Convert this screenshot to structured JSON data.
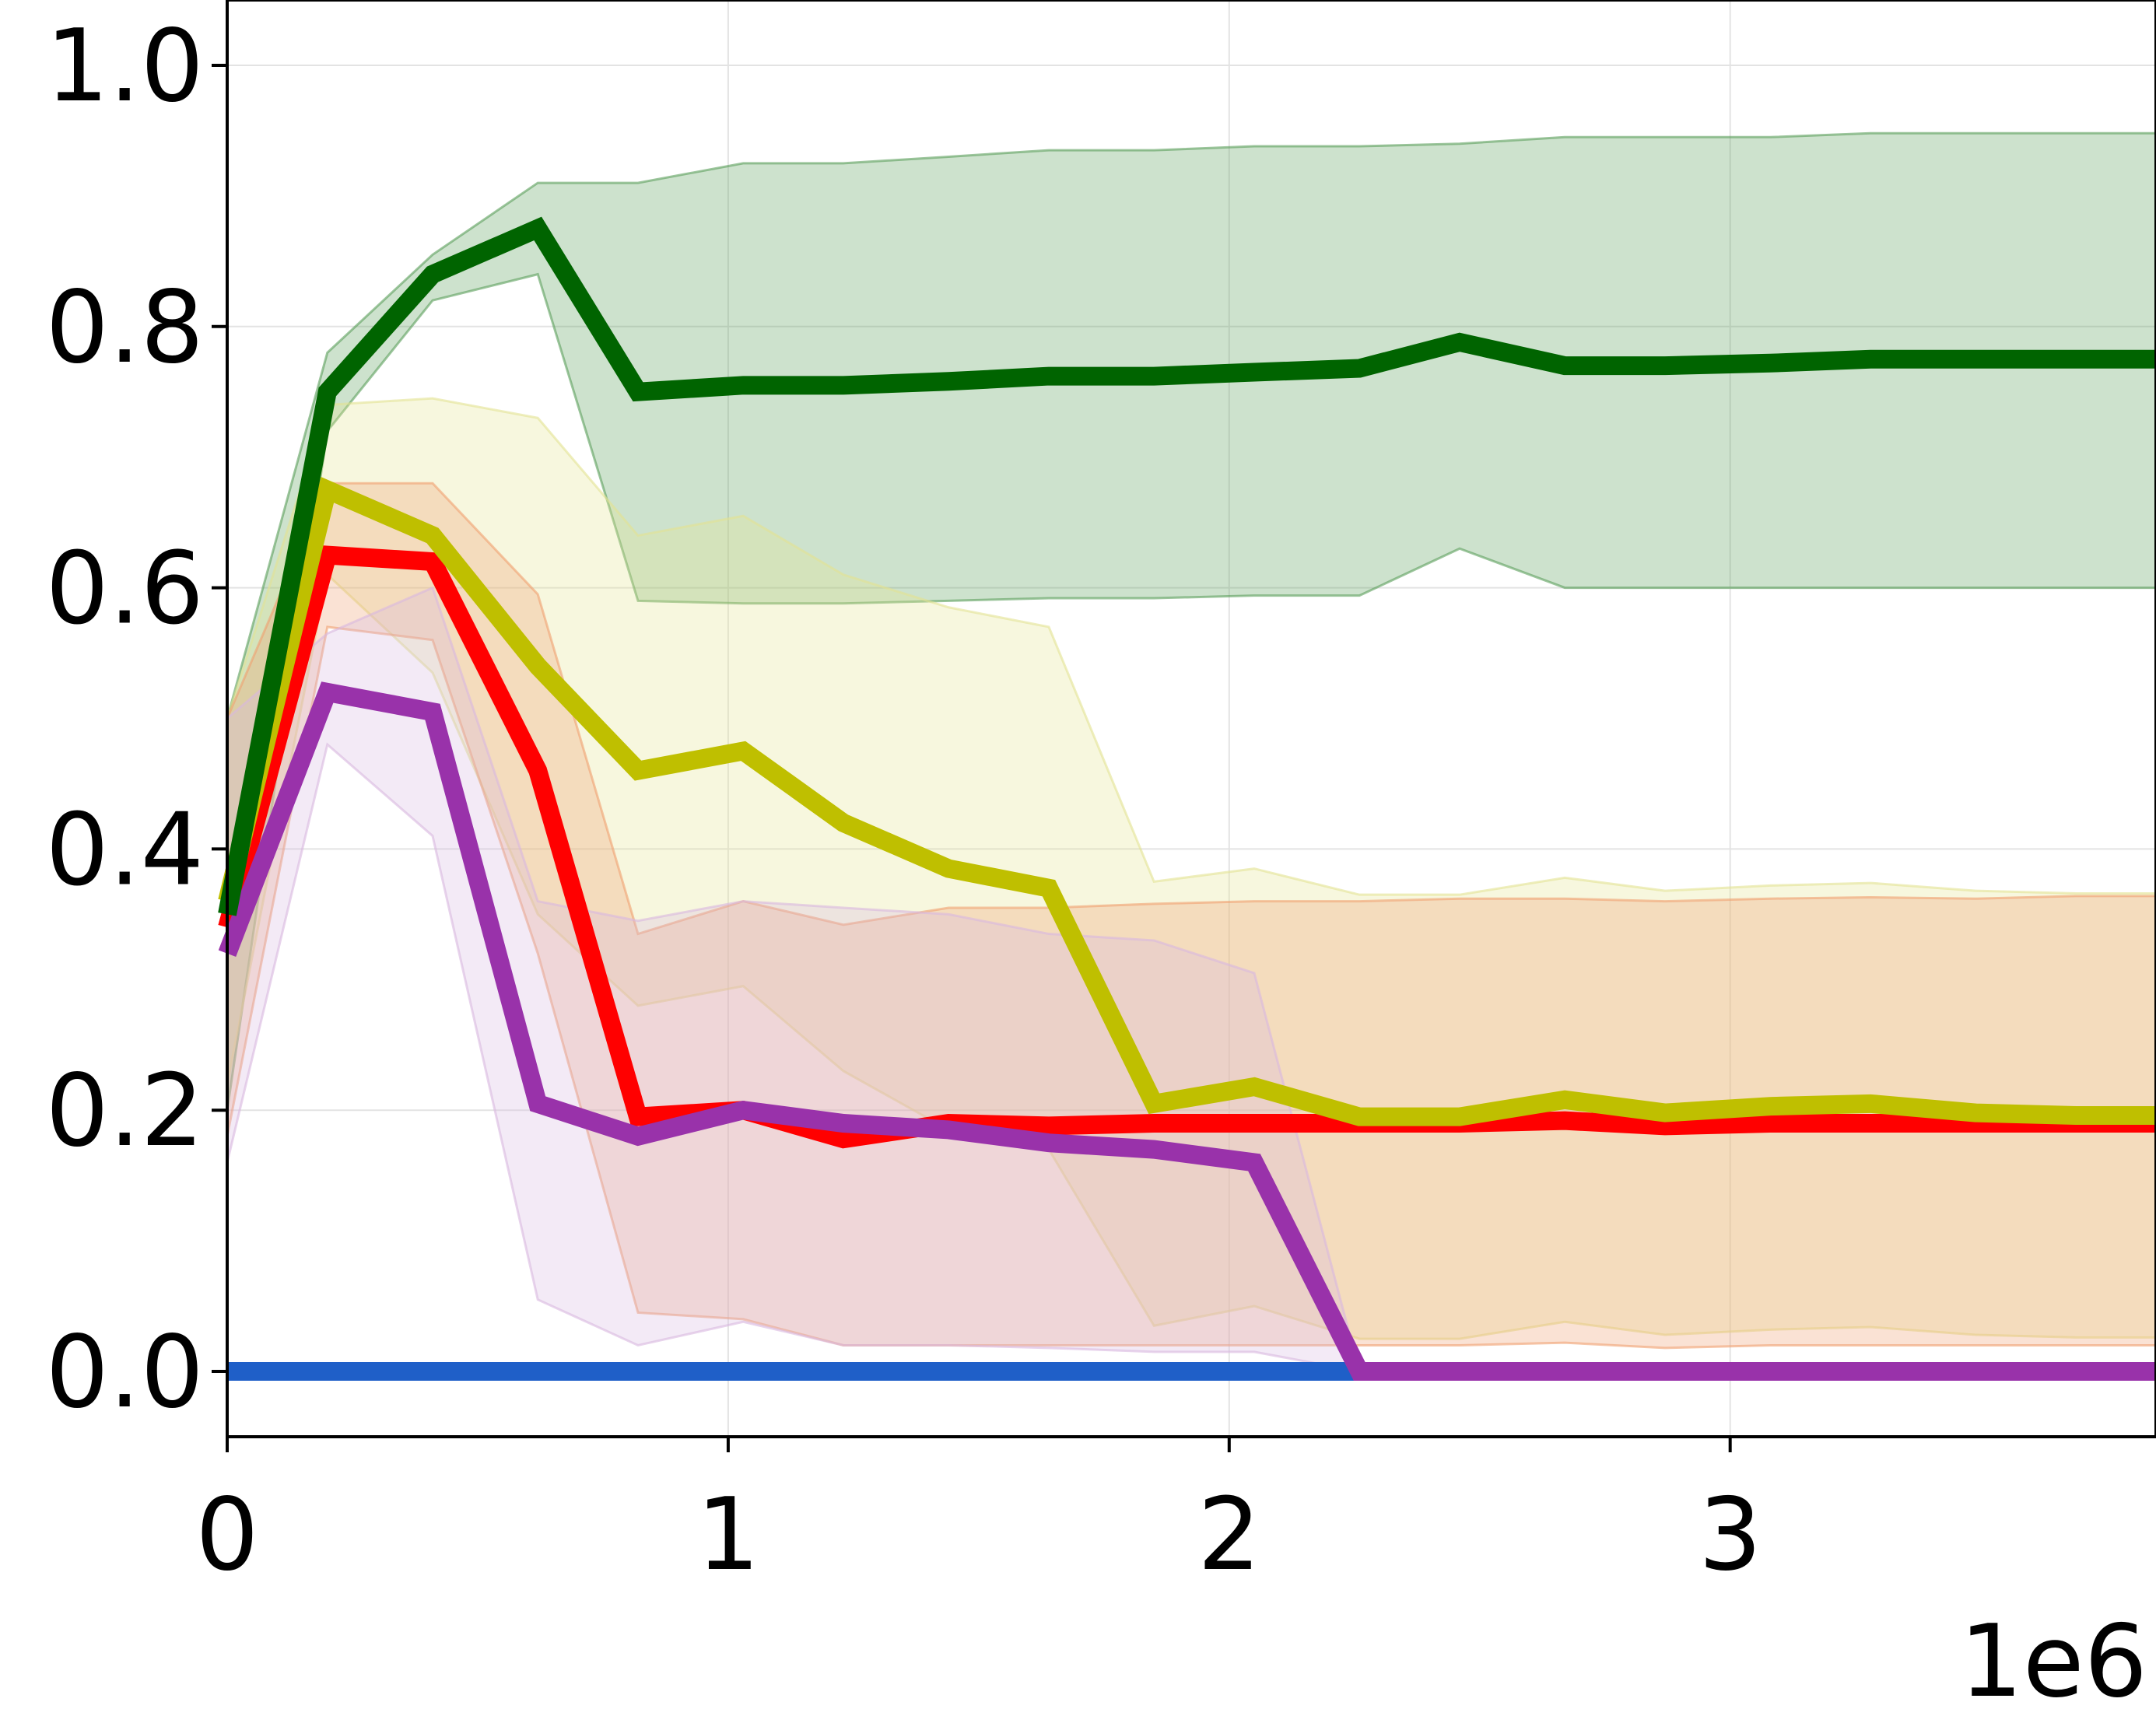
{
  "chart_data": {
    "type": "line",
    "title": "",
    "xlabel": "",
    "ylabel": "",
    "x_offset_label": "1e6",
    "xlim": [
      0,
      3.85
    ],
    "ylim": [
      -0.05,
      1.05
    ],
    "x_ticks": [
      0,
      1,
      2,
      3
    ],
    "x_tick_labels": [
      "0",
      "1",
      "2",
      "3"
    ],
    "y_ticks": [
      0.0,
      0.2,
      0.4,
      0.6,
      0.8,
      1.0
    ],
    "y_tick_labels": [
      "0.0",
      "0.2",
      "0.4",
      "0.6",
      "0.8",
      "1.0"
    ],
    "grid": true,
    "legend": "none",
    "x": [
      0,
      0.2,
      0.41,
      0.62,
      0.82,
      1.03,
      1.23,
      1.44,
      1.64,
      1.85,
      2.05,
      2.26,
      2.46,
      2.67,
      2.87,
      3.08,
      3.28,
      3.49,
      3.69,
      3.85
    ],
    "series": [
      {
        "color": "#006400",
        "fill_color": "#5a9e5a",
        "values": [
          0.35,
          0.75,
          0.84,
          0.875,
          0.75,
          0.755,
          0.755,
          0.758,
          0.762,
          0.762,
          0.765,
          0.768,
          0.788,
          0.77,
          0.77,
          0.772,
          0.775,
          0.775,
          0.775,
          0.775
        ],
        "upper": [
          0.5,
          0.78,
          0.855,
          0.91,
          0.91,
          0.925,
          0.925,
          0.93,
          0.935,
          0.935,
          0.938,
          0.938,
          0.94,
          0.945,
          0.945,
          0.945,
          0.948,
          0.948,
          0.948,
          0.948
        ],
        "lower": [
          0.2,
          0.72,
          0.82,
          0.84,
          0.59,
          0.588,
          0.588,
          0.59,
          0.592,
          0.592,
          0.594,
          0.594,
          0.63,
          0.6,
          0.6,
          0.6,
          0.6,
          0.6,
          0.6,
          0.6
        ]
      },
      {
        "color": "#bfbf00",
        "fill_color": "#e3e392",
        "values": [
          0.36,
          0.675,
          0.64,
          0.54,
          0.46,
          0.475,
          0.42,
          0.385,
          0.37,
          0.205,
          0.218,
          0.195,
          0.195,
          0.208,
          0.198,
          0.203,
          0.205,
          0.198,
          0.196,
          0.196
        ],
        "upper": [
          0.5,
          0.74,
          0.745,
          0.73,
          0.64,
          0.655,
          0.61,
          0.585,
          0.57,
          0.375,
          0.385,
          0.365,
          0.365,
          0.378,
          0.368,
          0.372,
          0.374,
          0.368,
          0.366,
          0.366
        ],
        "lower": [
          0.22,
          0.61,
          0.535,
          0.35,
          0.28,
          0.295,
          0.23,
          0.185,
          0.17,
          0.035,
          0.05,
          0.025,
          0.025,
          0.038,
          0.028,
          0.032,
          0.034,
          0.028,
          0.026,
          0.026
        ]
      },
      {
        "color": "#ff0000",
        "fill_color": "#f0a070",
        "values": [
          0.34,
          0.625,
          0.62,
          0.46,
          0.195,
          0.2,
          0.178,
          0.19,
          0.188,
          0.19,
          0.19,
          0.19,
          0.19,
          0.192,
          0.188,
          0.19,
          0.19,
          0.19,
          0.19,
          0.19
        ],
        "upper": [
          0.5,
          0.68,
          0.68,
          0.595,
          0.335,
          0.36,
          0.342,
          0.355,
          0.355,
          0.358,
          0.36,
          0.36,
          0.362,
          0.362,
          0.36,
          0.362,
          0.363,
          0.362,
          0.364,
          0.364
        ],
        "lower": [
          0.18,
          0.57,
          0.56,
          0.32,
          0.045,
          0.04,
          0.02,
          0.02,
          0.02,
          0.02,
          0.02,
          0.02,
          0.02,
          0.022,
          0.018,
          0.02,
          0.02,
          0.02,
          0.02,
          0.02
        ]
      },
      {
        "color": "#9932aa",
        "fill_color": "#d8b8e0",
        "values": [
          0.32,
          0.52,
          0.505,
          0.205,
          0.18,
          0.2,
          0.19,
          0.185,
          0.175,
          0.17,
          0.16,
          0.0,
          0.0,
          0.0,
          0.0,
          0.0,
          0.0,
          0.0,
          0.0,
          0.0
        ],
        "upper": [
          0.5,
          0.565,
          0.6,
          0.36,
          0.345,
          0.36,
          0.355,
          0.35,
          0.335,
          0.33,
          0.305,
          0.0,
          0.0,
          0.0,
          0.0,
          0.0,
          0.0,
          0.0,
          0.0,
          0.0
        ],
        "lower": [
          0.16,
          0.48,
          0.41,
          0.055,
          0.02,
          0.038,
          0.02,
          0.02,
          0.018,
          0.015,
          0.015,
          0.0,
          0.0,
          0.0,
          0.0,
          0.0,
          0.0,
          0.0,
          0.0,
          0.0
        ]
      },
      {
        "color": "#1f5fc8",
        "fill_color": "#1f5fc8",
        "values": [
          0.0,
          0.0,
          0.0,
          0.0,
          0.0,
          0.0,
          0.0,
          0.0,
          0.0,
          0.0,
          0.0,
          0.0,
          0.0,
          0.0,
          0.0,
          0.0,
          0.0,
          0.0,
          0.0,
          0.0
        ],
        "upper": [
          0.0,
          0.0,
          0.0,
          0.0,
          0.0,
          0.0,
          0.0,
          0.0,
          0.0,
          0.0,
          0.0,
          0.0,
          0.0,
          0.0,
          0.0,
          0.0,
          0.0,
          0.0,
          0.0,
          0.0
        ],
        "lower": [
          0.0,
          0.0,
          0.0,
          0.0,
          0.0,
          0.0,
          0.0,
          0.0,
          0.0,
          0.0,
          0.0,
          0.0,
          0.0,
          0.0,
          0.0,
          0.0,
          0.0,
          0.0,
          0.0,
          0.0
        ]
      }
    ]
  }
}
